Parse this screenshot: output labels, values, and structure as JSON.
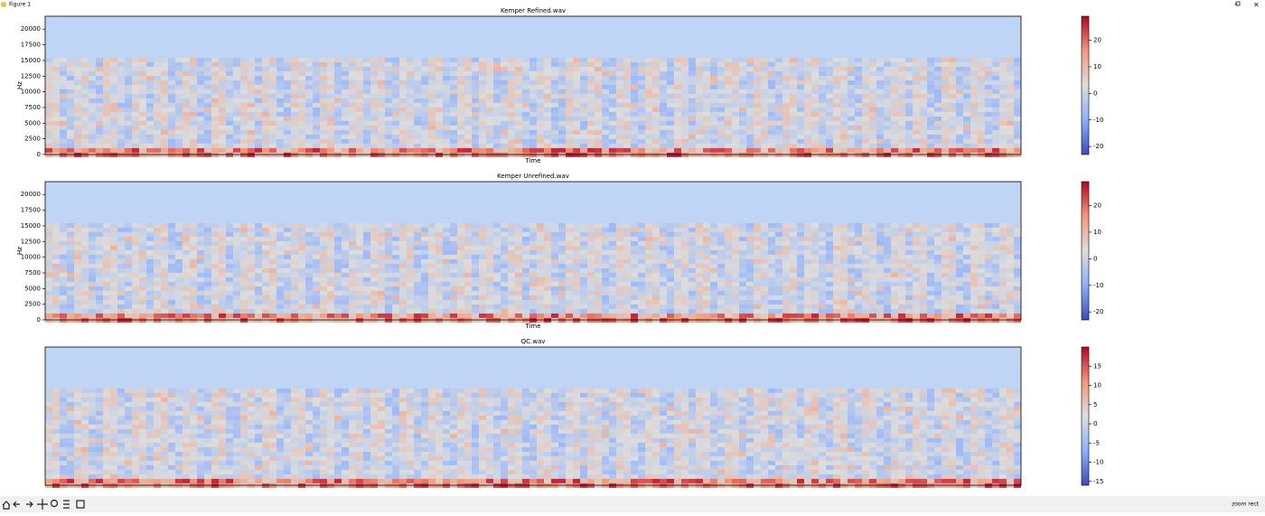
{
  "window": {
    "title": "Figure 1"
  },
  "chart_data": [
    {
      "type": "heatmap",
      "title": "Kemper Refined.wav",
      "ylabel": "Hz",
      "xlabel": "Time",
      "ylim": [
        0,
        22050
      ],
      "yticks": [
        0,
        2500,
        5000,
        7500,
        10000,
        12500,
        15000,
        17500,
        20000
      ],
      "colorbar": {
        "lim": [
          -23,
          29
        ],
        "ticks": [
          -20,
          -10,
          0,
          10,
          20
        ]
      }
    },
    {
      "type": "heatmap",
      "title": "Kemper Unrefined.wav",
      "ylabel": "Hz",
      "xlabel": "Time",
      "ylim": [
        0,
        22050
      ],
      "yticks": [
        0,
        2500,
        5000,
        7500,
        10000,
        12500,
        15000,
        17500,
        20000
      ],
      "colorbar": {
        "lim": [
          -23,
          29
        ],
        "ticks": [
          -20,
          -10,
          0,
          10,
          20
        ]
      }
    },
    {
      "type": "heatmap",
      "title": "QC.wav",
      "colorbar": {
        "lim": [
          -16,
          20
        ],
        "ticks": [
          -15,
          -10,
          -5,
          0,
          5,
          10,
          15
        ]
      }
    }
  ],
  "status": "zoom rect"
}
